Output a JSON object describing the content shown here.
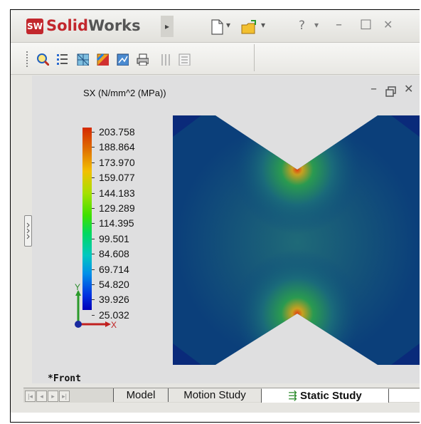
{
  "app": {
    "logo_text": "SW",
    "title_bold": "Solid",
    "title_rest": "Works",
    "menu_arrow": "▸",
    "window_controls": {
      "help": "?",
      "dropdown": "▾",
      "minimize": "–",
      "maximize": "□",
      "close": "✕"
    }
  },
  "toolbar": {
    "icons": [
      "zoom-icon",
      "list-icon",
      "mesh-icon",
      "results-icon",
      "plot-icon",
      "print-icon",
      "disabled-list-icon",
      "report-icon"
    ]
  },
  "viewport": {
    "plot_title": "SX (N/mm^2 (MPa))",
    "controls": {
      "minimize": "–",
      "restore": "🗗",
      "close": "✕"
    },
    "legend": [
      "203.758",
      "188.864",
      "173.970",
      "159.077",
      "144.183",
      "129.289",
      "114.395",
      "99.501",
      "84.608",
      "69.714",
      "54.820",
      "39.926",
      "25.032"
    ],
    "axis_y": "Y",
    "axis_x": "X",
    "view_name": "*Front",
    "colors": {
      "low": "#0a2f7a",
      "mid": "#1f8a5a",
      "high": "#e05010"
    }
  },
  "tabs": {
    "nav": [
      "|◂",
      "◂",
      "▸",
      "▸|"
    ],
    "items": [
      {
        "label": "Model"
      },
      {
        "label": "Motion Study"
      },
      {
        "label": "Static Study",
        "active": true
      }
    ]
  }
}
